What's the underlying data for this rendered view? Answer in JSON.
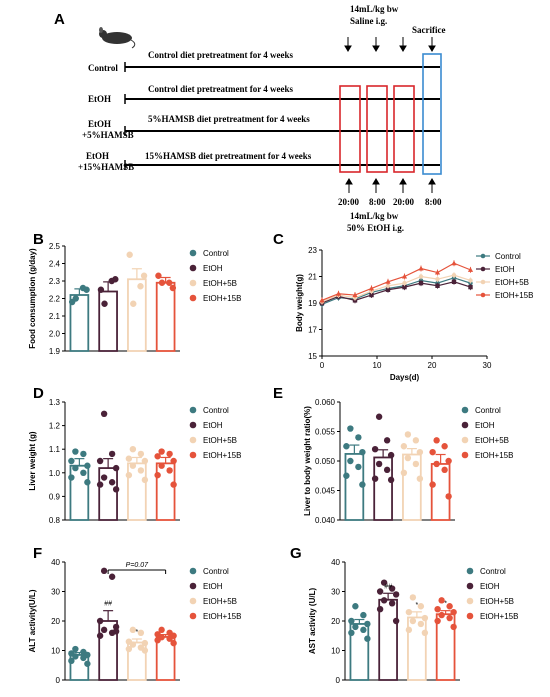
{
  "colors": {
    "control": "#3d7a80",
    "etoh": "#4a2238",
    "etoh5b": "#f2d3b4",
    "etoh15b": "#e5533b",
    "box_red": "#d9262b",
    "box_blue": "#3a8bd0"
  },
  "panels": {
    "A": "A",
    "B": "B",
    "C": "C",
    "D": "D",
    "E": "E",
    "F": "F",
    "G": "G"
  },
  "schematic": {
    "top_dose": "14mL/kg bw",
    "top_treatment": "Saline i.g.",
    "sacrifice": "Sacrifice",
    "rows": [
      {
        "label": "Control",
        "diet": "Control diet pretreatment for 4 weeks"
      },
      {
        "label": "EtOH",
        "diet": "Control diet pretreatment for 4 weeks"
      },
      {
        "label_line1": "EtOH",
        "label_line2": "+5%HAMSB",
        "diet": "5%HAMSB diet pretreatment for 4 weeks"
      },
      {
        "label_line1": "EtOH",
        "label_line2": "+15%HAMSB",
        "diet": "15%HAMSB diet pretreatment for 4 weeks"
      }
    ],
    "times": [
      "20:00",
      "8:00",
      "20:00",
      "8:00"
    ],
    "bottom_dose": "14mL/kg bw",
    "bottom_treatment": "50% EtOH i.g."
  },
  "legend": [
    "Control",
    "EtOH",
    "EtOH+5B",
    "EtOH+15B"
  ],
  "chart_data": [
    {
      "panel": "B",
      "type": "bar",
      "ylabel": "Food consumption (g/day)",
      "categories": [
        "Control",
        "EtOH",
        "EtOH+5B",
        "EtOH+15B"
      ],
      "values": [
        2.22,
        2.24,
        2.31,
        2.29
      ],
      "errors": [
        0.035,
        0.055,
        0.06,
        0.03
      ],
      "points": [
        [
          2.2,
          2.26,
          2.18,
          2.25
        ],
        [
          2.17,
          2.3,
          2.25,
          2.31
        ],
        [
          2.17,
          2.27,
          2.45,
          2.33
        ],
        [
          2.29,
          2.29,
          2.33,
          2.26
        ]
      ],
      "ylim": [
        1.9,
        2.5
      ],
      "yticks": [
        "1.9",
        "2.0",
        "2.1",
        "2.2",
        "2.3",
        "2.4",
        "2.5"
      ],
      "yticks_num": [
        1.9,
        2.0,
        2.1,
        2.2,
        2.3,
        2.4,
        2.5
      ]
    },
    {
      "panel": "C",
      "type": "line",
      "xlabel": "Days(d)",
      "ylabel": "Body weight(g)",
      "x": [
        0,
        3,
        6,
        9,
        12,
        15,
        18,
        21,
        24,
        27
      ],
      "xlim": [
        0,
        30
      ],
      "ylim": [
        15,
        23
      ],
      "xticks": [
        "0",
        "10",
        "20",
        "30"
      ],
      "xticks_num": [
        0,
        10,
        20,
        30
      ],
      "yticks": [
        "15",
        "17",
        "19",
        "21",
        "23"
      ],
      "yticks_num": [
        15,
        17,
        19,
        21,
        23
      ],
      "series": [
        {
          "name": "Control",
          "values": [
            18.9,
            19.4,
            19.3,
            19.8,
            20.1,
            20.3,
            20.7,
            20.5,
            20.9,
            20.5
          ]
        },
        {
          "name": "EtOH",
          "values": [
            19.0,
            19.5,
            19.2,
            19.6,
            20.0,
            20.2,
            20.5,
            20.3,
            20.6,
            20.2
          ]
        },
        {
          "name": "EtOH+5B",
          "values": [
            19.1,
            19.6,
            19.4,
            19.9,
            20.3,
            20.5,
            21.0,
            20.8,
            21.1,
            20.7
          ]
        },
        {
          "name": "EtOH+15B",
          "values": [
            19.2,
            19.7,
            19.6,
            20.1,
            20.6,
            21.0,
            21.6,
            21.3,
            22.0,
            21.5
          ]
        }
      ]
    },
    {
      "panel": "D",
      "type": "bar",
      "ylabel": "Liver weight (g)",
      "categories": [
        "Control",
        "EtOH",
        "EtOH+5B",
        "EtOH+15B"
      ],
      "values": [
        1.03,
        1.02,
        1.04,
        1.04
      ],
      "errors": [
        0.03,
        0.04,
        0.025,
        0.025
      ],
      "points": [
        [
          1.09,
          1.08,
          1.05,
          1.03,
          1.02,
          1.0,
          0.98,
          0.96
        ],
        [
          1.25,
          1.08,
          1.05,
          1.02,
          0.98,
          0.96,
          0.95,
          0.93
        ],
        [
          1.1,
          1.08,
          1.06,
          1.05,
          1.03,
          1.01,
          0.99,
          0.97
        ],
        [
          1.09,
          1.08,
          1.07,
          1.05,
          1.03,
          1.01,
          0.99,
          0.95
        ]
      ],
      "ylim": [
        0.8,
        1.3
      ],
      "yticks": [
        "0.8",
        "0.9",
        "1.0",
        "1.1",
        "1.2",
        "1.3"
      ],
      "yticks_num": [
        0.8,
        0.9,
        1.0,
        1.1,
        1.2,
        1.3
      ]
    },
    {
      "panel": "E",
      "type": "bar",
      "ylabel": "Liver to body weight ratio(%)",
      "categories": [
        "Control",
        "EtOH",
        "EtOH+5B",
        "EtOH+15B"
      ],
      "values": [
        0.0512,
        0.0506,
        0.0511,
        0.0495
      ],
      "errors": [
        0.0015,
        0.0013,
        0.001,
        0.0016
      ],
      "points": [
        [
          0.0555,
          0.054,
          0.0525,
          0.0515,
          0.05,
          0.049,
          0.0475,
          0.046
        ],
        [
          0.0575,
          0.0535,
          0.052,
          0.051,
          0.0495,
          0.0485,
          0.047,
          0.0468
        ],
        [
          0.0545,
          0.0535,
          0.0525,
          0.0515,
          0.0505,
          0.0495,
          0.048,
          0.047
        ],
        [
          0.0535,
          0.0525,
          0.0515,
          0.05,
          0.0495,
          0.0485,
          0.046,
          0.044
        ]
      ],
      "ylim": [
        0.04,
        0.06
      ],
      "yticks": [
        "0.040",
        "0.045",
        "0.050",
        "0.055",
        "0.060"
      ],
      "yticks_num": [
        0.04,
        0.045,
        0.05,
        0.055,
        0.06
      ]
    },
    {
      "panel": "F",
      "type": "bar",
      "ylabel": "ALT activity(U/L)",
      "categories": [
        "Control",
        "EtOH",
        "EtOH+5B",
        "EtOH+15B"
      ],
      "values": [
        8.5,
        20.0,
        12.7,
        14.6
      ],
      "errors": [
        0.8,
        3.5,
        1.2,
        0.8
      ],
      "points": [
        [
          10.5,
          9.5,
          9.0,
          8.5,
          8.0,
          7.5,
          6.5,
          5.5
        ],
        [
          37,
          35,
          20,
          18,
          17,
          16,
          15,
          16.5
        ],
        [
          17,
          16,
          13,
          12.5,
          12,
          11,
          10.5,
          10
        ],
        [
          17,
          16,
          15.5,
          15,
          14.5,
          14,
          13.5,
          12.5
        ]
      ],
      "ylim": [
        0,
        40
      ],
      "yticks": [
        "0",
        "10",
        "20",
        "30",
        "40"
      ],
      "yticks_num": [
        0,
        10,
        20,
        30,
        40
      ],
      "sig": [
        "",
        "##",
        "*",
        ""
      ],
      "bracket": {
        "from": 1,
        "to": 3,
        "label": "P=0.07"
      }
    },
    {
      "panel": "G",
      "type": "bar",
      "ylabel": "AST activity (U/L)",
      "categories": [
        "Control",
        "EtOH",
        "EtOH+5B",
        "EtOH+15B"
      ],
      "values": [
        19.0,
        27.2,
        21.2,
        22.3
      ],
      "errors": [
        1.5,
        2.2,
        1.9,
        1.2
      ],
      "points": [
        [
          25,
          22,
          20,
          19,
          18,
          17,
          16,
          14
        ],
        [
          33,
          31,
          30,
          29,
          27,
          26,
          24,
          20
        ],
        [
          28,
          25,
          23,
          21,
          20,
          19,
          17,
          16
        ],
        [
          27,
          25,
          24,
          23,
          22,
          21,
          20,
          18
        ]
      ],
      "ylim": [
        0,
        40
      ],
      "yticks": [
        "0",
        "10",
        "20",
        "30",
        "40"
      ],
      "yticks_num": [
        0,
        10,
        20,
        30,
        40
      ],
      "sig": [
        "",
        "##",
        "*",
        "*"
      ]
    }
  ]
}
